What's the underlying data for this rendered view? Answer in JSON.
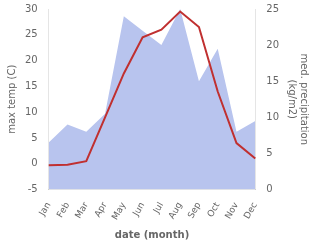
{
  "chart_data": {
    "type": "line",
    "categories": [
      "Jan",
      "Feb",
      "Mar",
      "Apr",
      "May",
      "Jun",
      "Jul",
      "Aug",
      "Sep",
      "Oct",
      "Nov",
      "Dec"
    ],
    "xlabel": "date (month)",
    "ylabel": "max temp (C)",
    "y2label": [
      "med. precipitation",
      "(kg/m2)"
    ],
    "series": [
      {
        "type": "area",
        "color": "#b8c4ee",
        "axis": "y2",
        "values": [
          6.5,
          9.0,
          8.0,
          10.5,
          24.0,
          22.0,
          20.0,
          25.0,
          15.0,
          19.5,
          8.0,
          9.5
        ]
      },
      {
        "type": "line",
        "color": "#c03030",
        "values": [
          -0.3,
          -0.2,
          0.5,
          9.0,
          17.5,
          24.5,
          26.0,
          29.5,
          26.5,
          14.0,
          4.0,
          1.0
        ]
      }
    ],
    "ylim": [
      -5,
      30
    ],
    "yticks": [
      -5,
      0,
      5,
      10,
      15,
      20,
      25,
      30
    ],
    "y2lim": [
      0,
      25
    ],
    "y2ticks": [
      0,
      5,
      10,
      15,
      20,
      25
    ],
    "grid": false
  }
}
